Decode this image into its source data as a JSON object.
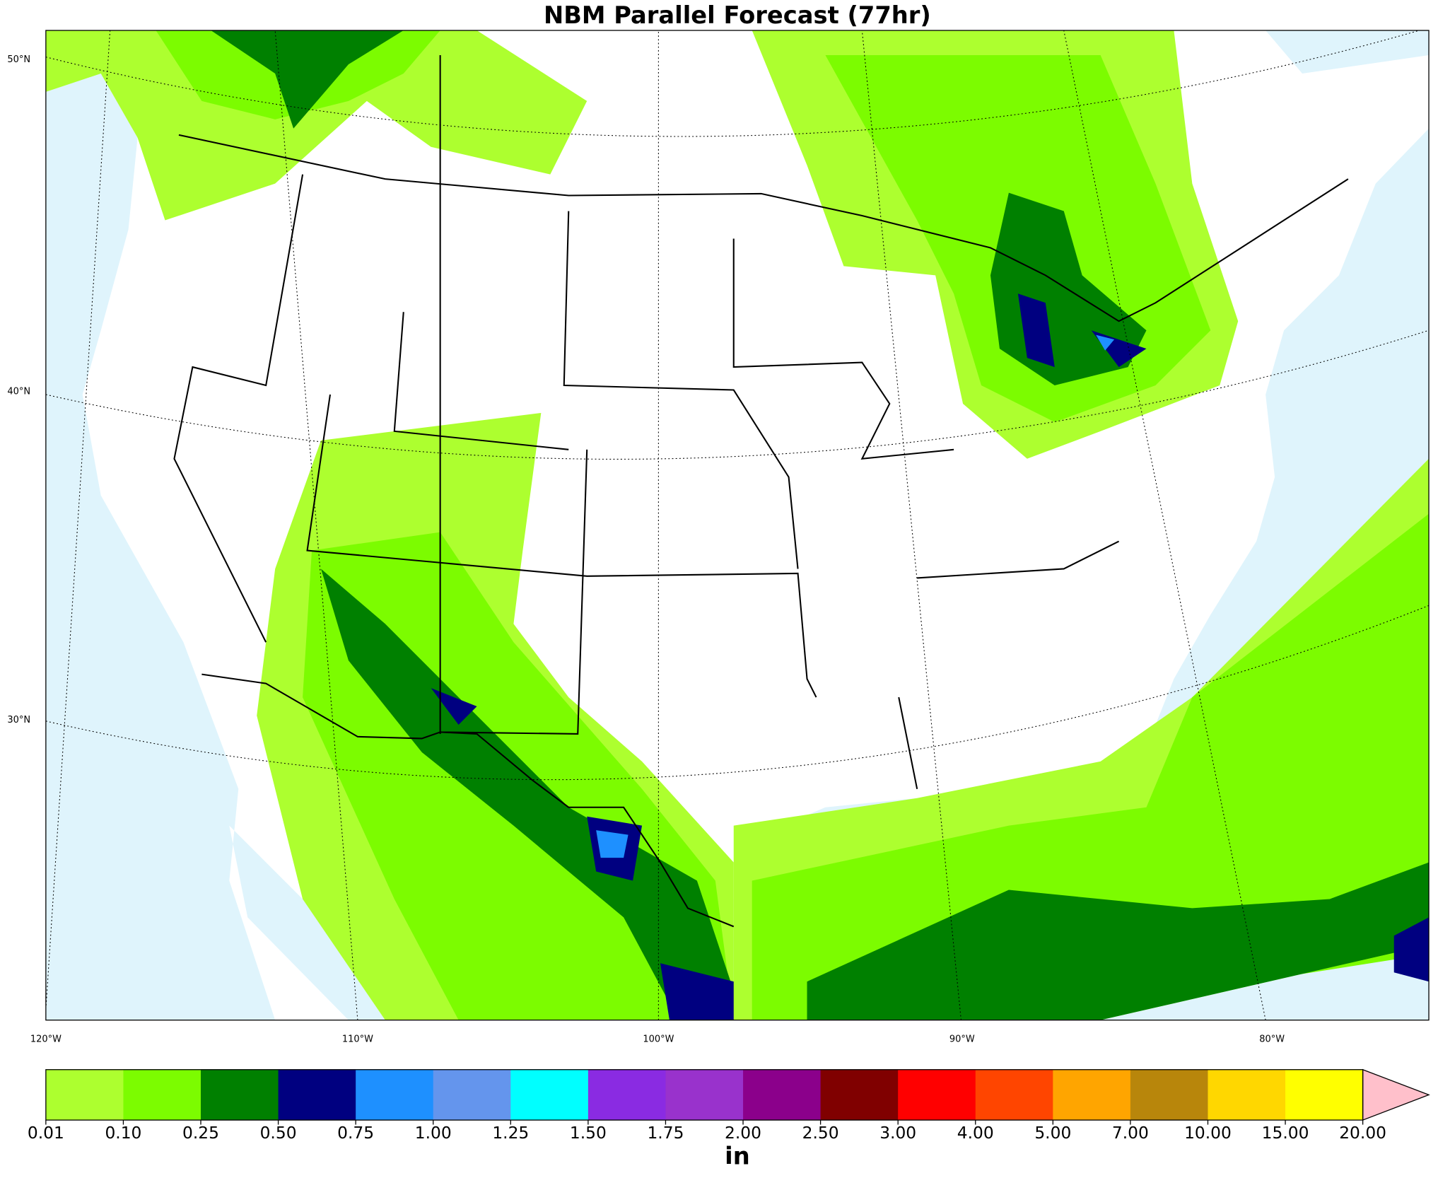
{
  "header": {
    "title": "NBM Parallel Forecast (77hr)"
  },
  "map": {
    "lat_labels": [
      "50°N",
      "40°N",
      "30°N"
    ],
    "lon_labels": [
      "120°W",
      "110°W",
      "100°W",
      "90°W",
      "80°W"
    ]
  },
  "colorbar": {
    "label": "in",
    "ticks": [
      "0.01",
      "0.10",
      "0.25",
      "0.50",
      "0.75",
      "1.00",
      "1.25",
      "1.50",
      "1.75",
      "2.00",
      "2.50",
      "3.00",
      "4.00",
      "5.00",
      "7.00",
      "10.00",
      "15.00",
      "20.00"
    ],
    "colors": [
      "#adff2f",
      "#7cfc00",
      "#008000",
      "#000080",
      "#1e90ff",
      "#6495ed",
      "#00ffff",
      "#8a2be2",
      "#9932cc",
      "#8b008b",
      "#800000",
      "#ff0000",
      "#ff4500",
      "#ffa500",
      "#b8860b",
      "#ffd700",
      "#ffff00"
    ],
    "extend_color": "#ffc0cb"
  }
}
